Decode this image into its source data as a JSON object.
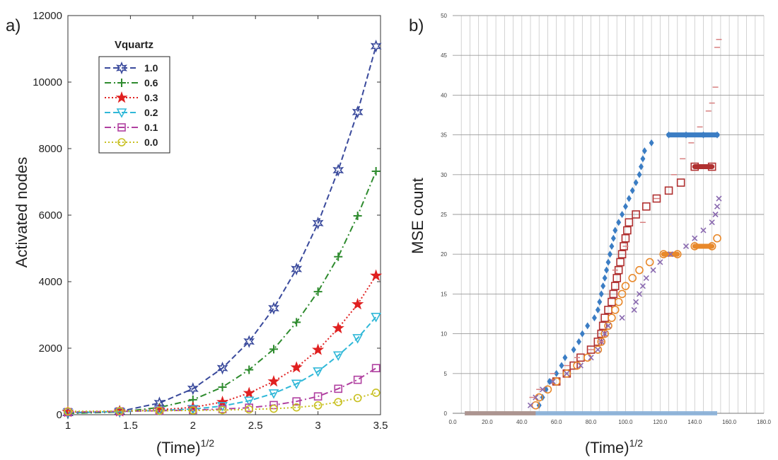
{
  "chart_data": [
    {
      "panel_label": "a)",
      "type": "line",
      "xlabel": "(Time)",
      "xlabel_sup": "1/2",
      "ylabel": "Activated nodes",
      "xlim": [
        1,
        3.5
      ],
      "ylim": [
        0,
        12000
      ],
      "x_ticks": [
        1,
        1.5,
        2,
        2.5,
        3,
        3.5
      ],
      "y_ticks": [
        0,
        2000,
        4000,
        6000,
        8000,
        10000,
        12000
      ],
      "legend_title": "Vquartz",
      "legend_position": "top-left",
      "x": [
        1.0,
        1.414,
        1.732,
        2.0,
        2.236,
        2.449,
        2.646,
        2.828,
        3.0,
        3.162,
        3.317,
        3.464
      ],
      "series": [
        {
          "name": "1.0",
          "color": "#3a4a9c",
          "marker": "hexagram",
          "dash": "dashed",
          "values": [
            50,
            100,
            350,
            780,
            1400,
            2200,
            3200,
            4380,
            5760,
            7350,
            9100,
            11080
          ]
        },
        {
          "name": "0.6",
          "color": "#2e8b2e",
          "marker": "plus",
          "dash": "dashdot",
          "values": [
            40,
            80,
            220,
            450,
            830,
            1350,
            1970,
            2780,
            3700,
            4750,
            5980,
            7320
          ]
        },
        {
          "name": "0.3",
          "color": "#e02020",
          "marker": "star",
          "dash": "dotted",
          "values": [
            80,
            100,
            150,
            220,
            380,
            650,
            1000,
            1420,
            1950,
            2600,
            3320,
            4180
          ]
        },
        {
          "name": "0.2",
          "color": "#30b8d8",
          "marker": "triangle-down",
          "dash": "dashed",
          "values": [
            70,
            90,
            130,
            170,
            260,
            420,
            640,
            930,
            1300,
            1780,
            2300,
            2940
          ]
        },
        {
          "name": "0.1",
          "color": "#b040a0",
          "marker": "square",
          "dash": "dashdot",
          "values": [
            80,
            100,
            120,
            140,
            170,
            210,
            290,
            400,
            550,
            780,
            1050,
            1400
          ]
        },
        {
          "name": "0.0",
          "color": "#c8c020",
          "marker": "circle",
          "dash": "dotted",
          "values": [
            100,
            110,
            120,
            130,
            140,
            160,
            180,
            220,
            280,
            380,
            500,
            660
          ]
        }
      ]
    },
    {
      "panel_label": "b)",
      "type": "scatter",
      "xlabel": "(Time)",
      "xlabel_sup": "1/2",
      "ylabel": "MSE count",
      "xlim": [
        0,
        180
      ],
      "ylim": [
        0,
        50
      ],
      "x_ticks": [
        0,
        20,
        40,
        60,
        80,
        100,
        120,
        140,
        160,
        180
      ],
      "x_tick_labels": [
        "0.0",
        "20.0",
        "40.0",
        "60.0",
        "80.0",
        "100.0",
        "120.0",
        "140.0",
        "160.0",
        "180.0"
      ],
      "y_ticks": [
        0,
        5,
        10,
        15,
        20,
        25,
        30,
        35,
        40,
        45,
        50
      ],
      "grid": true,
      "series": [
        {
          "name": "blue",
          "color": "#3b7dc4",
          "marker": "diamond",
          "points": [
            [
              50,
              1
            ],
            [
              52,
              2
            ],
            [
              54,
              3
            ],
            [
              56,
              4
            ],
            [
              60,
              5
            ],
            [
              63,
              6
            ],
            [
              65,
              7
            ],
            [
              70,
              8
            ],
            [
              73,
              9
            ],
            [
              75,
              10
            ],
            [
              78,
              11
            ],
            [
              82,
              12
            ],
            [
              84,
              13
            ],
            [
              85,
              14
            ],
            [
              86,
              15
            ],
            [
              87,
              16
            ],
            [
              88,
              17
            ],
            [
              89,
              18
            ],
            [
              90,
              19
            ],
            [
              91,
              20
            ],
            [
              92,
              21
            ],
            [
              93,
              22
            ],
            [
              94,
              23
            ],
            [
              96,
              24
            ],
            [
              98,
              25
            ],
            [
              100,
              26
            ],
            [
              102,
              27
            ],
            [
              104,
              28
            ],
            [
              106,
              29
            ],
            [
              108,
              30
            ],
            [
              109,
              31
            ],
            [
              110,
              32
            ],
            [
              111,
              33
            ],
            [
              115,
              34
            ],
            [
              125,
              35
            ],
            [
              135,
              35
            ],
            [
              145,
              35
            ],
            [
              153,
              35
            ]
          ]
        },
        {
          "name": "red",
          "color": "#b03030",
          "marker": "square",
          "points": [
            [
              60,
              4
            ],
            [
              66,
              5
            ],
            [
              70,
              6
            ],
            [
              74,
              7
            ],
            [
              80,
              8
            ],
            [
              84,
              9
            ],
            [
              86,
              10
            ],
            [
              87,
              11
            ],
            [
              88,
              12
            ],
            [
              90,
              13
            ],
            [
              92,
              14
            ],
            [
              93,
              15
            ],
            [
              94,
              16
            ],
            [
              95,
              17
            ],
            [
              96,
              18
            ],
            [
              97,
              19
            ],
            [
              98,
              20
            ],
            [
              99,
              21
            ],
            [
              100,
              22
            ],
            [
              101,
              23
            ],
            [
              102,
              24
            ],
            [
              106,
              25
            ],
            [
              112,
              26
            ],
            [
              118,
              27
            ],
            [
              125,
              28
            ],
            [
              132,
              29
            ],
            [
              140,
              31
            ],
            [
              150,
              31
            ]
          ]
        },
        {
          "name": "orange",
          "color": "#e8882a",
          "marker": "circle",
          "points": [
            [
              48,
              1
            ],
            [
              50,
              2
            ],
            [
              55,
              3
            ],
            [
              60,
              4
            ],
            [
              66,
              5
            ],
            [
              72,
              6
            ],
            [
              78,
              7
            ],
            [
              84,
              8
            ],
            [
              86,
              9
            ],
            [
              88,
              10
            ],
            [
              90,
              11
            ],
            [
              92,
              12
            ],
            [
              94,
              13
            ],
            [
              96,
              14
            ],
            [
              98,
              15
            ],
            [
              100,
              16
            ],
            [
              104,
              17
            ],
            [
              108,
              18
            ],
            [
              114,
              19
            ],
            [
              122,
              20
            ],
            [
              130,
              20
            ],
            [
              140,
              21
            ],
            [
              150,
              21
            ],
            [
              153,
              22
            ]
          ]
        },
        {
          "name": "purple",
          "color": "#8a6ab0",
          "marker": "cross",
          "points": [
            [
              45,
              1
            ],
            [
              48,
              2
            ],
            [
              52,
              3
            ],
            [
              58,
              4
            ],
            [
              66,
              5
            ],
            [
              74,
              6
            ],
            [
              80,
              7
            ],
            [
              84,
              8
            ],
            [
              86,
              9
            ],
            [
              88,
              10
            ],
            [
              90,
              11
            ],
            [
              98,
              12
            ],
            [
              105,
              13
            ],
            [
              106,
              14
            ],
            [
              108,
              15
            ],
            [
              110,
              16
            ],
            [
              112,
              17
            ],
            [
              116,
              18
            ],
            [
              120,
              19
            ],
            [
              126,
              20
            ],
            [
              135,
              21
            ],
            [
              140,
              22
            ],
            [
              145,
              23
            ],
            [
              150,
              24
            ],
            [
              152,
              25
            ],
            [
              153,
              26
            ],
            [
              154,
              27
            ]
          ]
        },
        {
          "name": "pink",
          "color": "#d88080",
          "marker": "dash",
          "points": [
            [
              46,
              2
            ],
            [
              50,
              3
            ],
            [
              58,
              5
            ],
            [
              66,
              6
            ],
            [
              72,
              7
            ],
            [
              80,
              8
            ],
            [
              86,
              9
            ],
            [
              94,
              18
            ],
            [
              100,
              21
            ],
            [
              110,
              24
            ],
            [
              118,
              27
            ],
            [
              128,
              30
            ],
            [
              133,
              32
            ],
            [
              138,
              34
            ],
            [
              143,
              36
            ],
            [
              148,
              38
            ],
            [
              150,
              39
            ],
            [
              152,
              41
            ],
            [
              153,
              46
            ],
            [
              154,
              47
            ]
          ]
        }
      ]
    }
  ]
}
